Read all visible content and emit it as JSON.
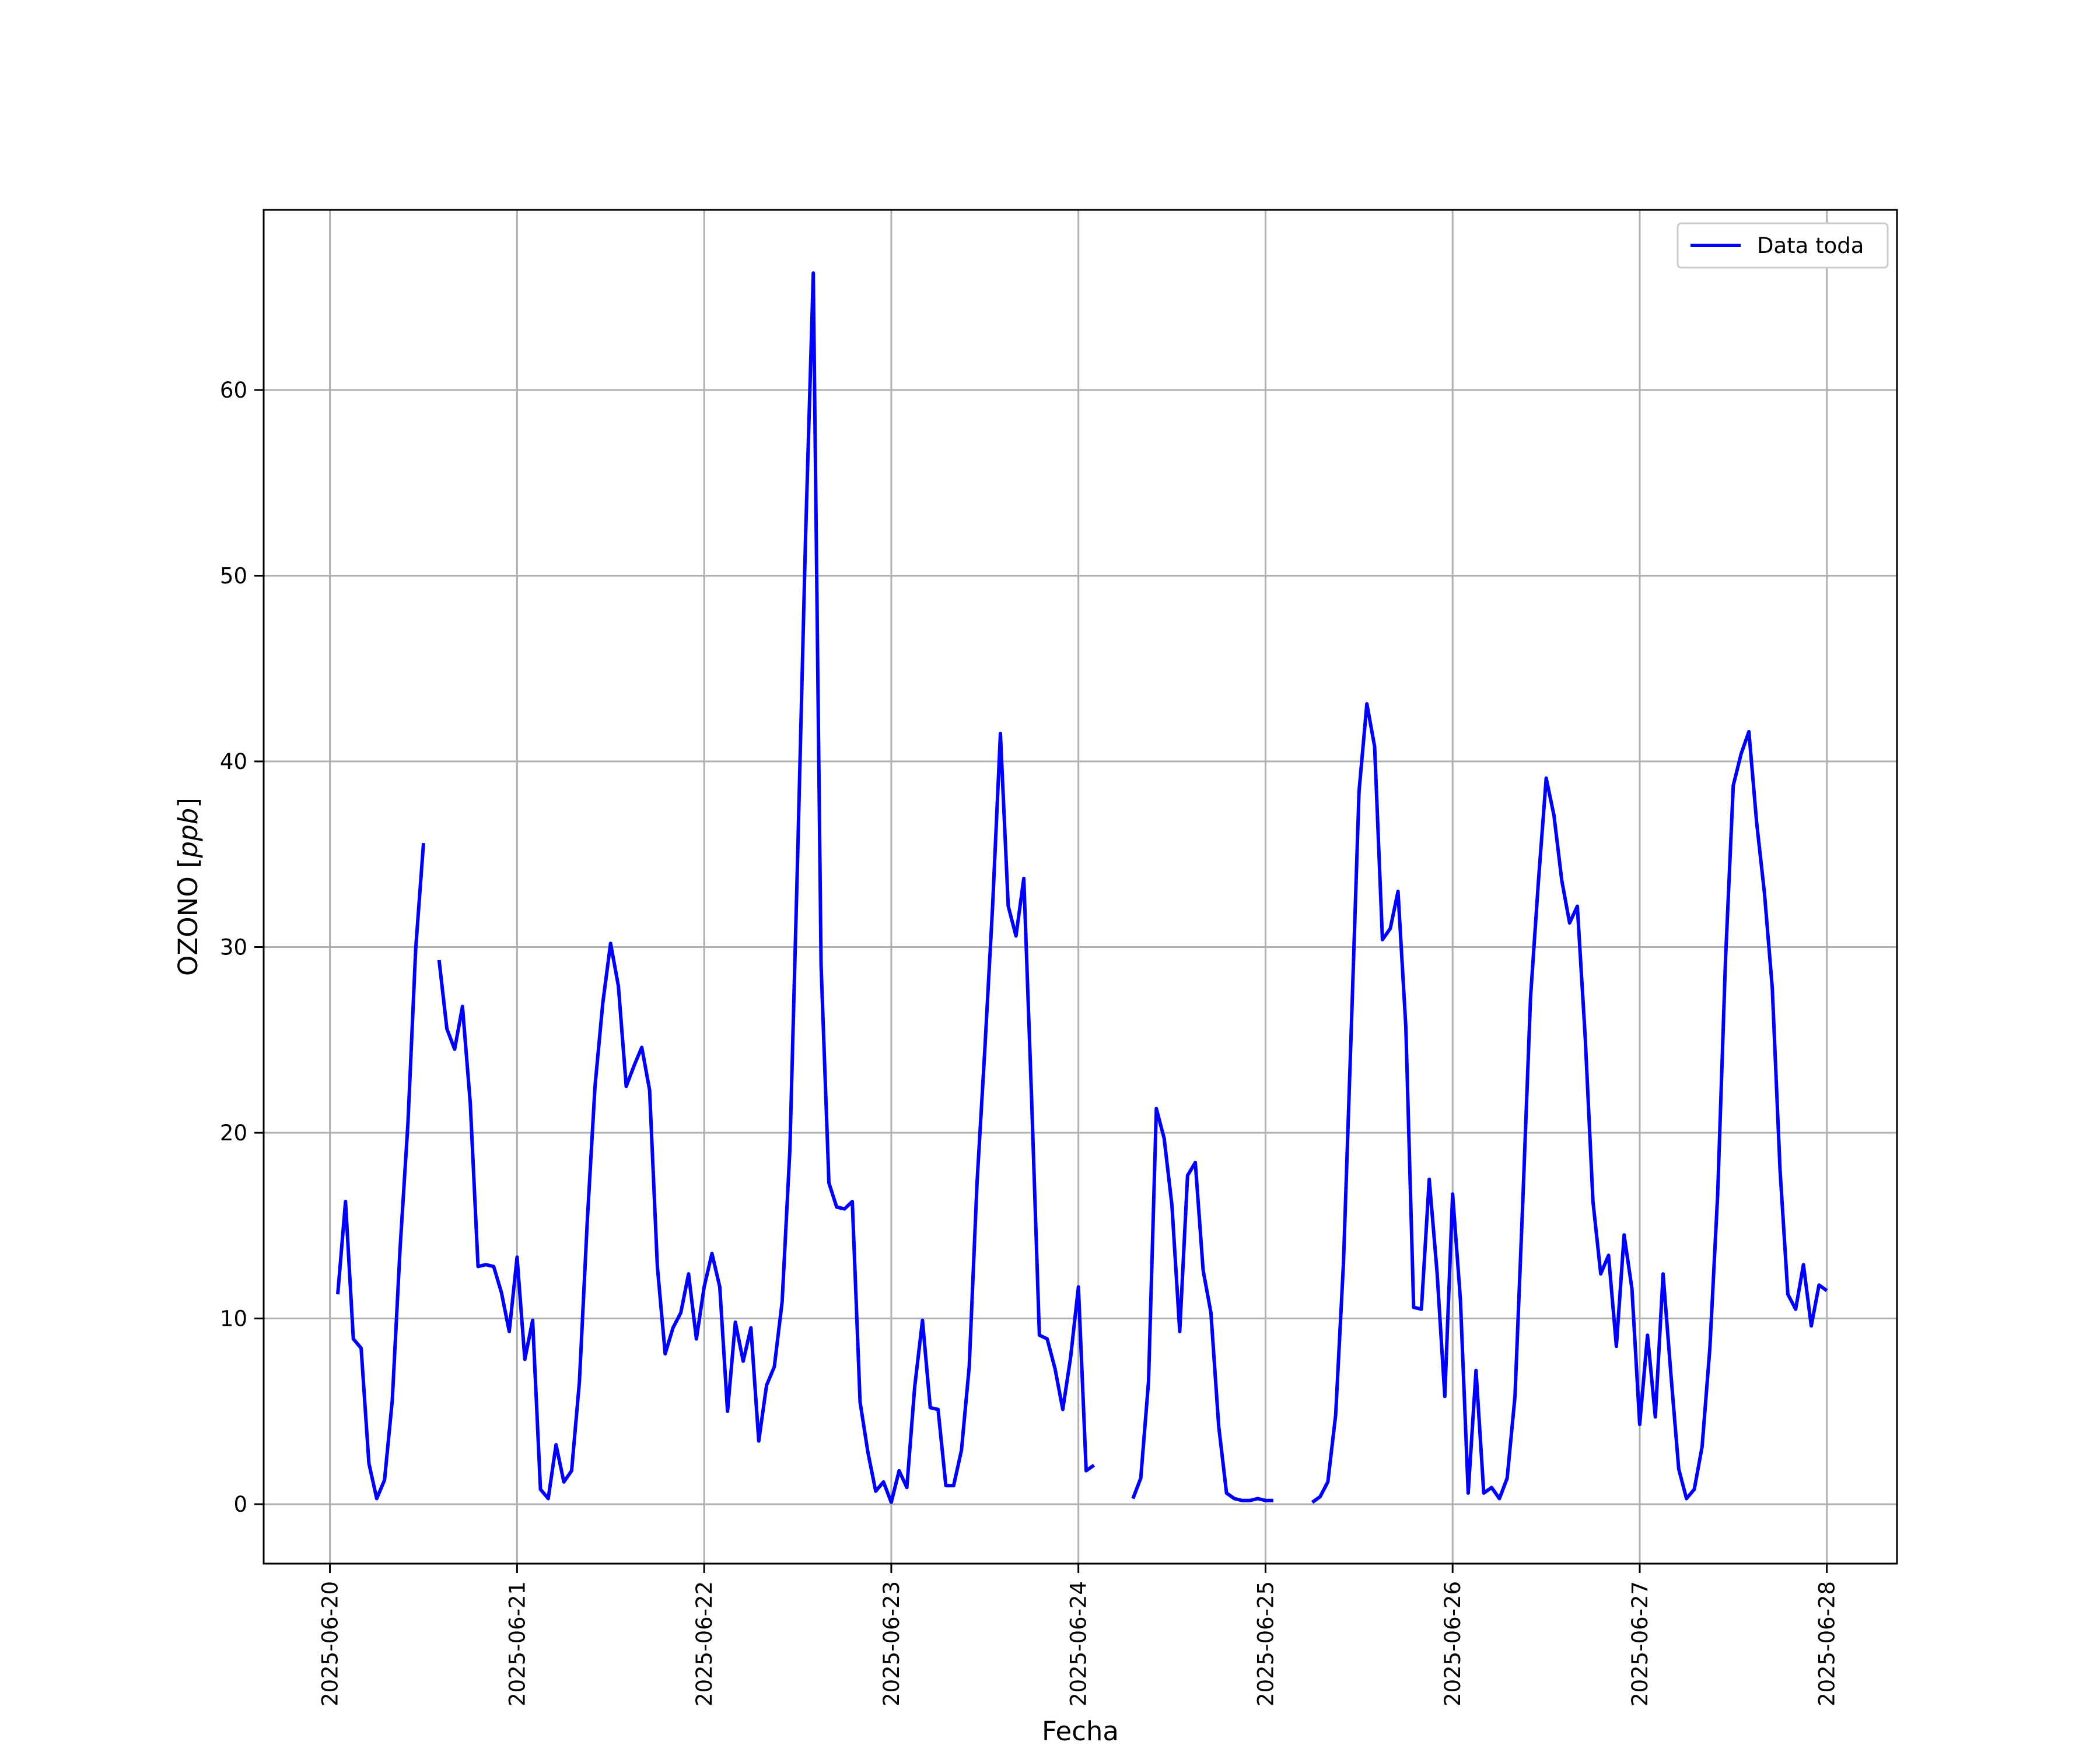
{
  "chart_data": {
    "type": "line",
    "title": "",
    "xlabel": "Fecha",
    "ylabel": "OZONO [ppb]",
    "ylabel_parts": {
      "main": "OZONO [",
      "unit": "ppb",
      "close": "]"
    },
    "x_ticks": [
      "2025-06-20",
      "2025-06-21",
      "2025-06-22",
      "2025-06-23",
      "2025-06-24",
      "2025-06-25",
      "2025-06-26",
      "2025-06-27",
      "2025-06-28"
    ],
    "y_ticks": [
      0,
      10,
      20,
      30,
      40,
      50,
      60
    ],
    "ylim": [
      -3.2,
      69.7
    ],
    "xlim": [
      "2025-06-19 15:30",
      "2025-06-28 09:00"
    ],
    "grid": true,
    "legend": {
      "position": "top-right",
      "entries": [
        "Data toda"
      ]
    },
    "series": [
      {
        "name": "Data toda",
        "color": "#0000ff",
        "points": [
          [
            "2025-06-20 01:00",
            11.3
          ],
          [
            "2025-06-20 02:00",
            16.3
          ],
          [
            "2025-06-20 03:00",
            8.9
          ],
          [
            "2025-06-20 04:00",
            8.4
          ],
          [
            "2025-06-20 05:00",
            2.2
          ],
          [
            "2025-06-20 06:00",
            0.3
          ],
          [
            "2025-06-20 07:00",
            1.3
          ],
          [
            "2025-06-20 08:00",
            5.6
          ],
          [
            "2025-06-20 09:00",
            13.8
          ],
          [
            "2025-06-20 10:00",
            20.5
          ],
          [
            "2025-06-20 11:00",
            29.9
          ],
          [
            "2025-06-20 12:00",
            35.6
          ],
          [
            "2025-06-20 13:00",
            null
          ],
          [
            "2025-06-20 14:00",
            29.3
          ],
          [
            "2025-06-20 15:00",
            25.6
          ],
          [
            "2025-06-20 16:00",
            24.5
          ],
          [
            "2025-06-20 17:00",
            26.8
          ],
          [
            "2025-06-20 18:00",
            21.6
          ],
          [
            "2025-06-20 19:00",
            12.8
          ],
          [
            "2025-06-20 20:00",
            12.9
          ],
          [
            "2025-06-20 21:00",
            12.8
          ],
          [
            "2025-06-20 22:00",
            11.4
          ],
          [
            "2025-06-20 23:00",
            9.3
          ],
          [
            "2025-06-21 00:00",
            13.3
          ],
          [
            "2025-06-21 01:00",
            7.8
          ],
          [
            "2025-06-21 02:00",
            9.9
          ],
          [
            "2025-06-21 03:00",
            0.8
          ],
          [
            "2025-06-21 04:00",
            0.3
          ],
          [
            "2025-06-21 05:00",
            3.2
          ],
          [
            "2025-06-21 06:00",
            1.2
          ],
          [
            "2025-06-21 07:00",
            1.8
          ],
          [
            "2025-06-21 08:00",
            6.6
          ],
          [
            "2025-06-21 09:00",
            15.2
          ],
          [
            "2025-06-21 10:00",
            22.5
          ],
          [
            "2025-06-21 11:00",
            27.0
          ],
          [
            "2025-06-21 12:00",
            30.2
          ],
          [
            "2025-06-21 13:00",
            27.9
          ],
          [
            "2025-06-21 14:00",
            22.5
          ],
          [
            "2025-06-21 15:00",
            23.6
          ],
          [
            "2025-06-21 16:00",
            24.6
          ],
          [
            "2025-06-21 17:00",
            22.3
          ],
          [
            "2025-06-21 18:00",
            12.8
          ],
          [
            "2025-06-21 19:00",
            8.1
          ],
          [
            "2025-06-21 20:00",
            9.5
          ],
          [
            "2025-06-21 21:00",
            10.3
          ],
          [
            "2025-06-21 22:00",
            12.4
          ],
          [
            "2025-06-21 23:00",
            8.9
          ],
          [
            "2025-06-22 00:00",
            11.7
          ],
          [
            "2025-06-22 01:00",
            13.5
          ],
          [
            "2025-06-22 02:00",
            11.7
          ],
          [
            "2025-06-22 03:00",
            5.0
          ],
          [
            "2025-06-22 04:00",
            9.8
          ],
          [
            "2025-06-22 05:00",
            7.7
          ],
          [
            "2025-06-22 06:00",
            9.5
          ],
          [
            "2025-06-22 07:00",
            3.4
          ],
          [
            "2025-06-22 08:00",
            6.4
          ],
          [
            "2025-06-22 09:00",
            7.4
          ],
          [
            "2025-06-22 10:00",
            10.9
          ],
          [
            "2025-06-22 11:00",
            19.1
          ],
          [
            "2025-06-22 12:00",
            35.0
          ],
          [
            "2025-06-22 13:00",
            52.0
          ],
          [
            "2025-06-22 14:00",
            66.3
          ],
          [
            "2025-06-22 15:00",
            29.0
          ],
          [
            "2025-06-22 16:00",
            17.3
          ],
          [
            "2025-06-22 17:00",
            16.0
          ],
          [
            "2025-06-22 18:00",
            15.9
          ],
          [
            "2025-06-22 19:00",
            16.3
          ],
          [
            "2025-06-22 20:00",
            5.5
          ],
          [
            "2025-06-22 21:00",
            2.8
          ],
          [
            "2025-06-22 22:00",
            0.7
          ],
          [
            "2025-06-22 23:00",
            1.2
          ],
          [
            "2025-06-23 00:00",
            0.1
          ],
          [
            "2025-06-23 01:00",
            1.8
          ],
          [
            "2025-06-23 02:00",
            0.9
          ],
          [
            "2025-06-23 03:00",
            6.3
          ],
          [
            "2025-06-23 04:00",
            9.9
          ],
          [
            "2025-06-23 05:00",
            5.2
          ],
          [
            "2025-06-23 06:00",
            5.1
          ],
          [
            "2025-06-23 07:00",
            1.0
          ],
          [
            "2025-06-23 08:00",
            1.0
          ],
          [
            "2025-06-23 09:00",
            2.9
          ],
          [
            "2025-06-23 10:00",
            7.4
          ],
          [
            "2025-06-23 11:00",
            17.3
          ],
          [
            "2025-06-23 12:00",
            24.5
          ],
          [
            "2025-06-23 13:00",
            32.2
          ],
          [
            "2025-06-23 14:00",
            41.5
          ],
          [
            "2025-06-23 15:00",
            32.2
          ],
          [
            "2025-06-23 16:00",
            30.6
          ],
          [
            "2025-06-23 17:00",
            33.7
          ],
          [
            "2025-06-23 18:00",
            21.8
          ],
          [
            "2025-06-23 19:00",
            9.1
          ],
          [
            "2025-06-23 20:00",
            8.9
          ],
          [
            "2025-06-23 21:00",
            7.3
          ],
          [
            "2025-06-23 22:00",
            5.1
          ],
          [
            "2025-06-23 23:00",
            7.9
          ],
          [
            "2025-06-24 00:00",
            11.7
          ],
          [
            "2025-06-24 01:00",
            1.8
          ],
          [
            "2025-06-24 02:00",
            2.1
          ],
          [
            "2025-06-24 03:00",
            null
          ],
          [
            "2025-06-24 07:00",
            0.3
          ],
          [
            "2025-06-24 08:00",
            1.4
          ],
          [
            "2025-06-24 09:00",
            6.6
          ],
          [
            "2025-06-24 10:00",
            21.3
          ],
          [
            "2025-06-24 11:00",
            19.7
          ],
          [
            "2025-06-24 12:00",
            16.1
          ],
          [
            "2025-06-24 13:00",
            9.3
          ],
          [
            "2025-06-24 14:00",
            17.7
          ],
          [
            "2025-06-24 15:00",
            18.4
          ],
          [
            "2025-06-24 16:00",
            12.6
          ],
          [
            "2025-06-24 17:00",
            10.3
          ],
          [
            "2025-06-24 18:00",
            4.2
          ],
          [
            "2025-06-24 19:00",
            0.6
          ],
          [
            "2025-06-24 20:00",
            0.3
          ],
          [
            "2025-06-24 21:00",
            0.2
          ],
          [
            "2025-06-24 22:00",
            0.2
          ],
          [
            "2025-06-24 23:00",
            0.3
          ],
          [
            "2025-06-25 00:00",
            0.2
          ],
          [
            "2025-06-25 01:00",
            0.2
          ],
          [
            "2025-06-25 02:00",
            null
          ],
          [
            "2025-06-25 06:00",
            0.1
          ],
          [
            "2025-06-25 07:00",
            0.4
          ],
          [
            "2025-06-25 08:00",
            1.2
          ],
          [
            "2025-06-25 09:00",
            4.8
          ],
          [
            "2025-06-25 10:00",
            13.0
          ],
          [
            "2025-06-25 11:00",
            25.5
          ],
          [
            "2025-06-25 12:00",
            38.4
          ],
          [
            "2025-06-25 13:00",
            43.1
          ],
          [
            "2025-06-25 14:00",
            40.8
          ],
          [
            "2025-06-25 15:00",
            30.4
          ],
          [
            "2025-06-25 16:00",
            31.0
          ],
          [
            "2025-06-25 17:00",
            33.0
          ],
          [
            "2025-06-25 18:00",
            25.7
          ],
          [
            "2025-06-25 19:00",
            10.6
          ],
          [
            "2025-06-25 20:00",
            10.5
          ],
          [
            "2025-06-25 21:00",
            17.5
          ],
          [
            "2025-06-25 22:00",
            12.5
          ],
          [
            "2025-06-25 23:00",
            5.8
          ],
          [
            "2025-06-26 00:00",
            16.7
          ],
          [
            "2025-06-26 01:00",
            11.0
          ],
          [
            "2025-06-26 02:00",
            0.6
          ],
          [
            "2025-06-26 03:00",
            7.2
          ],
          [
            "2025-06-26 04:00",
            0.6
          ],
          [
            "2025-06-26 05:00",
            0.9
          ],
          [
            "2025-06-26 06:00",
            0.3
          ],
          [
            "2025-06-26 07:00",
            1.4
          ],
          [
            "2025-06-26 08:00",
            5.8
          ],
          [
            "2025-06-26 09:00",
            16.3
          ],
          [
            "2025-06-26 10:00",
            27.3
          ],
          [
            "2025-06-26 11:00",
            33.5
          ],
          [
            "2025-06-26 12:00",
            39.1
          ],
          [
            "2025-06-26 13:00",
            37.1
          ],
          [
            "2025-06-26 14:00",
            33.6
          ],
          [
            "2025-06-26 15:00",
            31.3
          ],
          [
            "2025-06-26 16:00",
            32.2
          ],
          [
            "2025-06-26 17:00",
            25.2
          ],
          [
            "2025-06-26 18:00",
            16.3
          ],
          [
            "2025-06-26 19:00",
            12.4
          ],
          [
            "2025-06-26 20:00",
            13.4
          ],
          [
            "2025-06-26 21:00",
            8.5
          ],
          [
            "2025-06-26 22:00",
            14.5
          ],
          [
            "2025-06-26 23:00",
            11.6
          ],
          [
            "2025-06-27 00:00",
            4.3
          ],
          [
            "2025-06-27 01:00",
            9.1
          ],
          [
            "2025-06-27 02:00",
            4.7
          ],
          [
            "2025-06-27 03:00",
            12.4
          ],
          [
            "2025-06-27 04:00",
            7.0
          ],
          [
            "2025-06-27 05:00",
            1.9
          ],
          [
            "2025-06-27 06:00",
            0.3
          ],
          [
            "2025-06-27 07:00",
            0.8
          ],
          [
            "2025-06-27 08:00",
            3.1
          ],
          [
            "2025-06-27 09:00",
            8.4
          ],
          [
            "2025-06-27 10:00",
            16.7
          ],
          [
            "2025-06-27 11:00",
            29.3
          ],
          [
            "2025-06-27 12:00",
            38.7
          ],
          [
            "2025-06-27 13:00",
            40.4
          ],
          [
            "2025-06-27 14:00",
            41.6
          ],
          [
            "2025-06-27 15:00",
            36.7
          ],
          [
            "2025-06-27 16:00",
            32.9
          ],
          [
            "2025-06-27 17:00",
            27.8
          ],
          [
            "2025-06-27 18:00",
            18.0
          ],
          [
            "2025-06-27 19:00",
            11.3
          ],
          [
            "2025-06-27 20:00",
            10.5
          ],
          [
            "2025-06-27 21:00",
            12.9
          ],
          [
            "2025-06-27 22:00",
            9.6
          ],
          [
            "2025-06-27 23:00",
            11.8
          ],
          [
            "2025-06-28 00:00",
            11.5
          ]
        ]
      }
    ]
  }
}
